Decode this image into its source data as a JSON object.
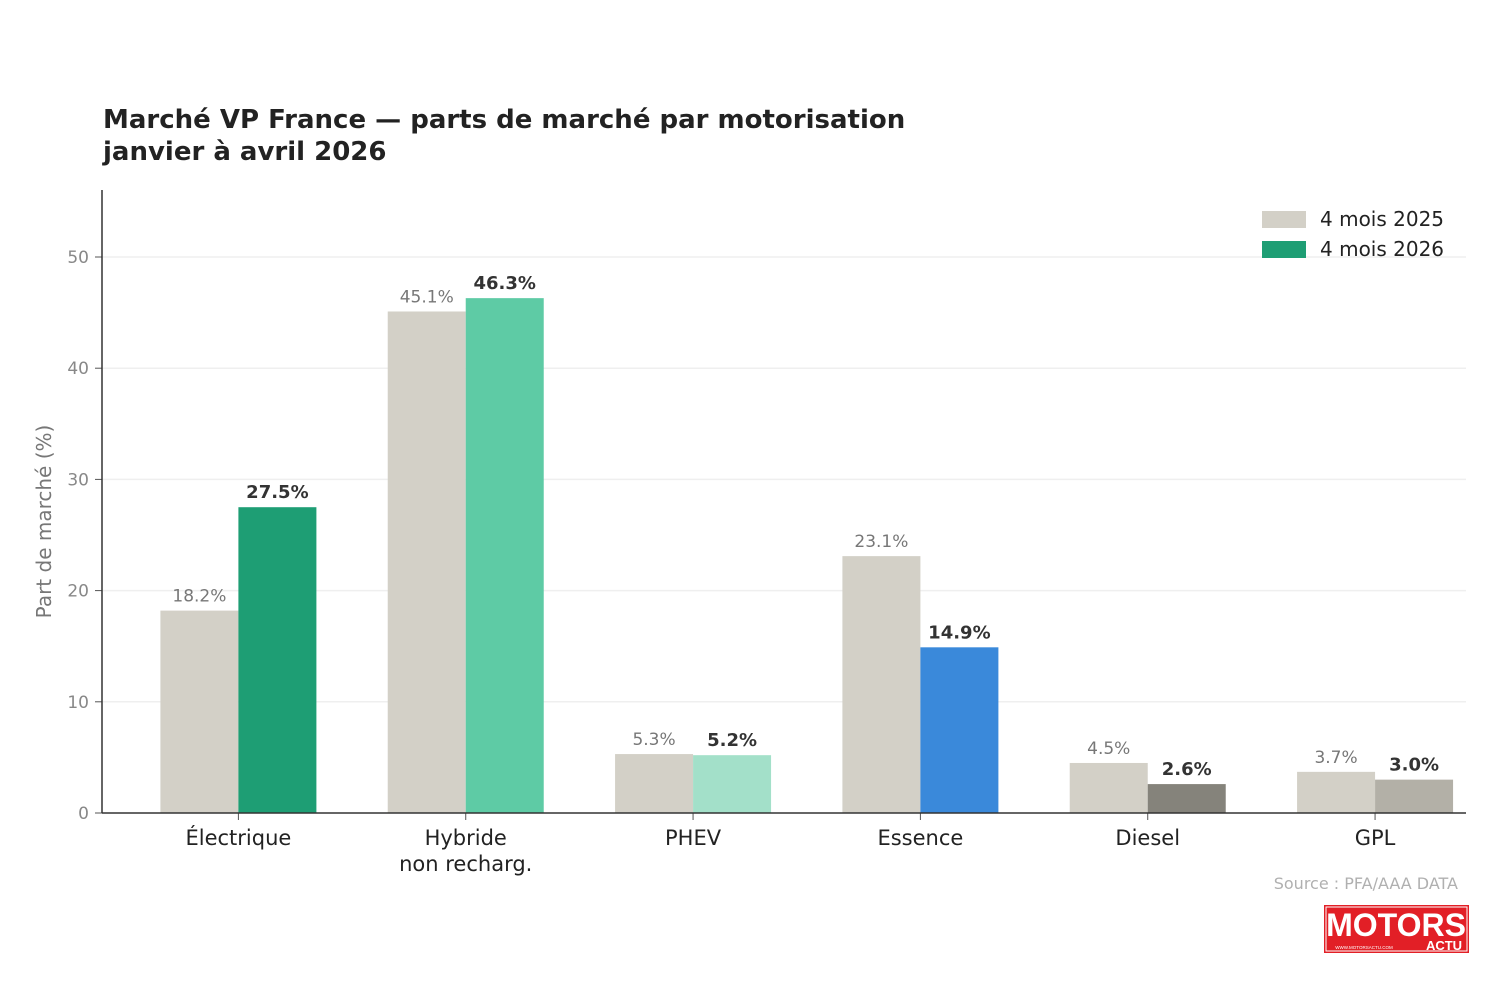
{
  "title_line1": "Marché VP France — parts de marché par motorisation",
  "title_line2": "janvier à avril 2026",
  "source": "Source : PFA/AAA DATA",
  "logo": {
    "text": "MOTORS",
    "sub": "ACTU",
    "url": "WWW.MOTORSACTU.COM",
    "color": "#e21f26"
  },
  "legend": [
    {
      "label": "4 mois 2025",
      "color": "#d3d0c7"
    },
    {
      "label": "4 mois 2026",
      "color": "#1e9e74"
    }
  ],
  "chart_data": {
    "type": "bar",
    "title": "Marché VP France — parts de marché par motorisation janvier à avril 2026",
    "ylabel": "Part de marché (%)",
    "ylim": [
      0,
      56
    ],
    "yticks": [
      0,
      10,
      20,
      30,
      40,
      50
    ],
    "grid": true,
    "legend_position": "top-right",
    "categories": [
      "Électrique",
      "Hybride\nnon recharg.",
      "PHEV",
      "Essence",
      "Diesel",
      "GPL"
    ],
    "series": [
      {
        "name": "4 mois 2025",
        "values": [
          18.2,
          45.1,
          5.3,
          23.1,
          4.5,
          3.7
        ],
        "labels": [
          "18.2%",
          "45.1%",
          "5.3%",
          "23.1%",
          "4.5%",
          "3.7%"
        ],
        "color": "#d3d0c7"
      },
      {
        "name": "4 mois 2026",
        "values": [
          27.5,
          46.3,
          5.2,
          14.9,
          2.6,
          3.0
        ],
        "labels": [
          "27.5%",
          "46.3%",
          "5.2%",
          "14.9%",
          "2.6%",
          "3.0%"
        ],
        "colors": [
          "#1e9e74",
          "#5ecba5",
          "#a3e0c9",
          "#3a89da",
          "#85837b",
          "#b3b0a7"
        ]
      }
    ]
  }
}
